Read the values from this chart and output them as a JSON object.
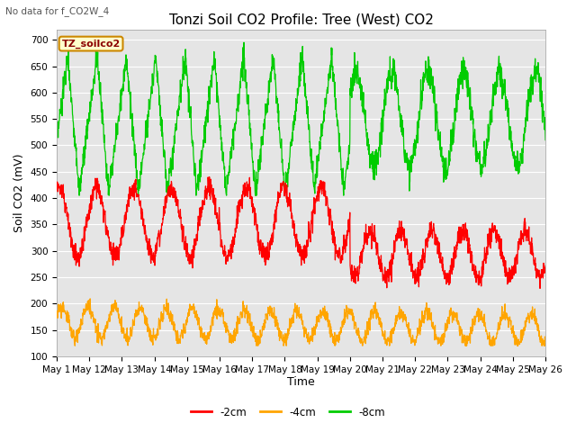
{
  "title": "Tonzi Soil CO2 Profile: Tree (West) CO2",
  "top_left_text": "No data for f_CO2W_4",
  "ylabel": "Soil CO2 (mV)",
  "xlabel": "Time",
  "legend_label": "TZ_soilco2",
  "series_labels": [
    "-2cm",
    "-4cm",
    "-8cm"
  ],
  "series_colors": [
    "#ff0000",
    "#ffa500",
    "#00cc00"
  ],
  "ylim": [
    100,
    720
  ],
  "yticks": [
    100,
    150,
    200,
    250,
    300,
    350,
    400,
    450,
    500,
    550,
    600,
    650,
    700
  ],
  "xtick_labels": [
    "May 1",
    "May 12",
    "May 13",
    "May 14",
    "May 15",
    "May 16",
    "May 17",
    "May 18",
    "May 19",
    "May 20",
    "May 21",
    "May 22",
    "May 23",
    "May 24",
    "May 25",
    "May 26"
  ],
  "background_color": "#ffffff",
  "plot_bg_color": "#e5e5e5",
  "grid_color": "#ffffff",
  "title_fontsize": 11,
  "axis_label_fontsize": 9,
  "tick_fontsize": 7.5
}
